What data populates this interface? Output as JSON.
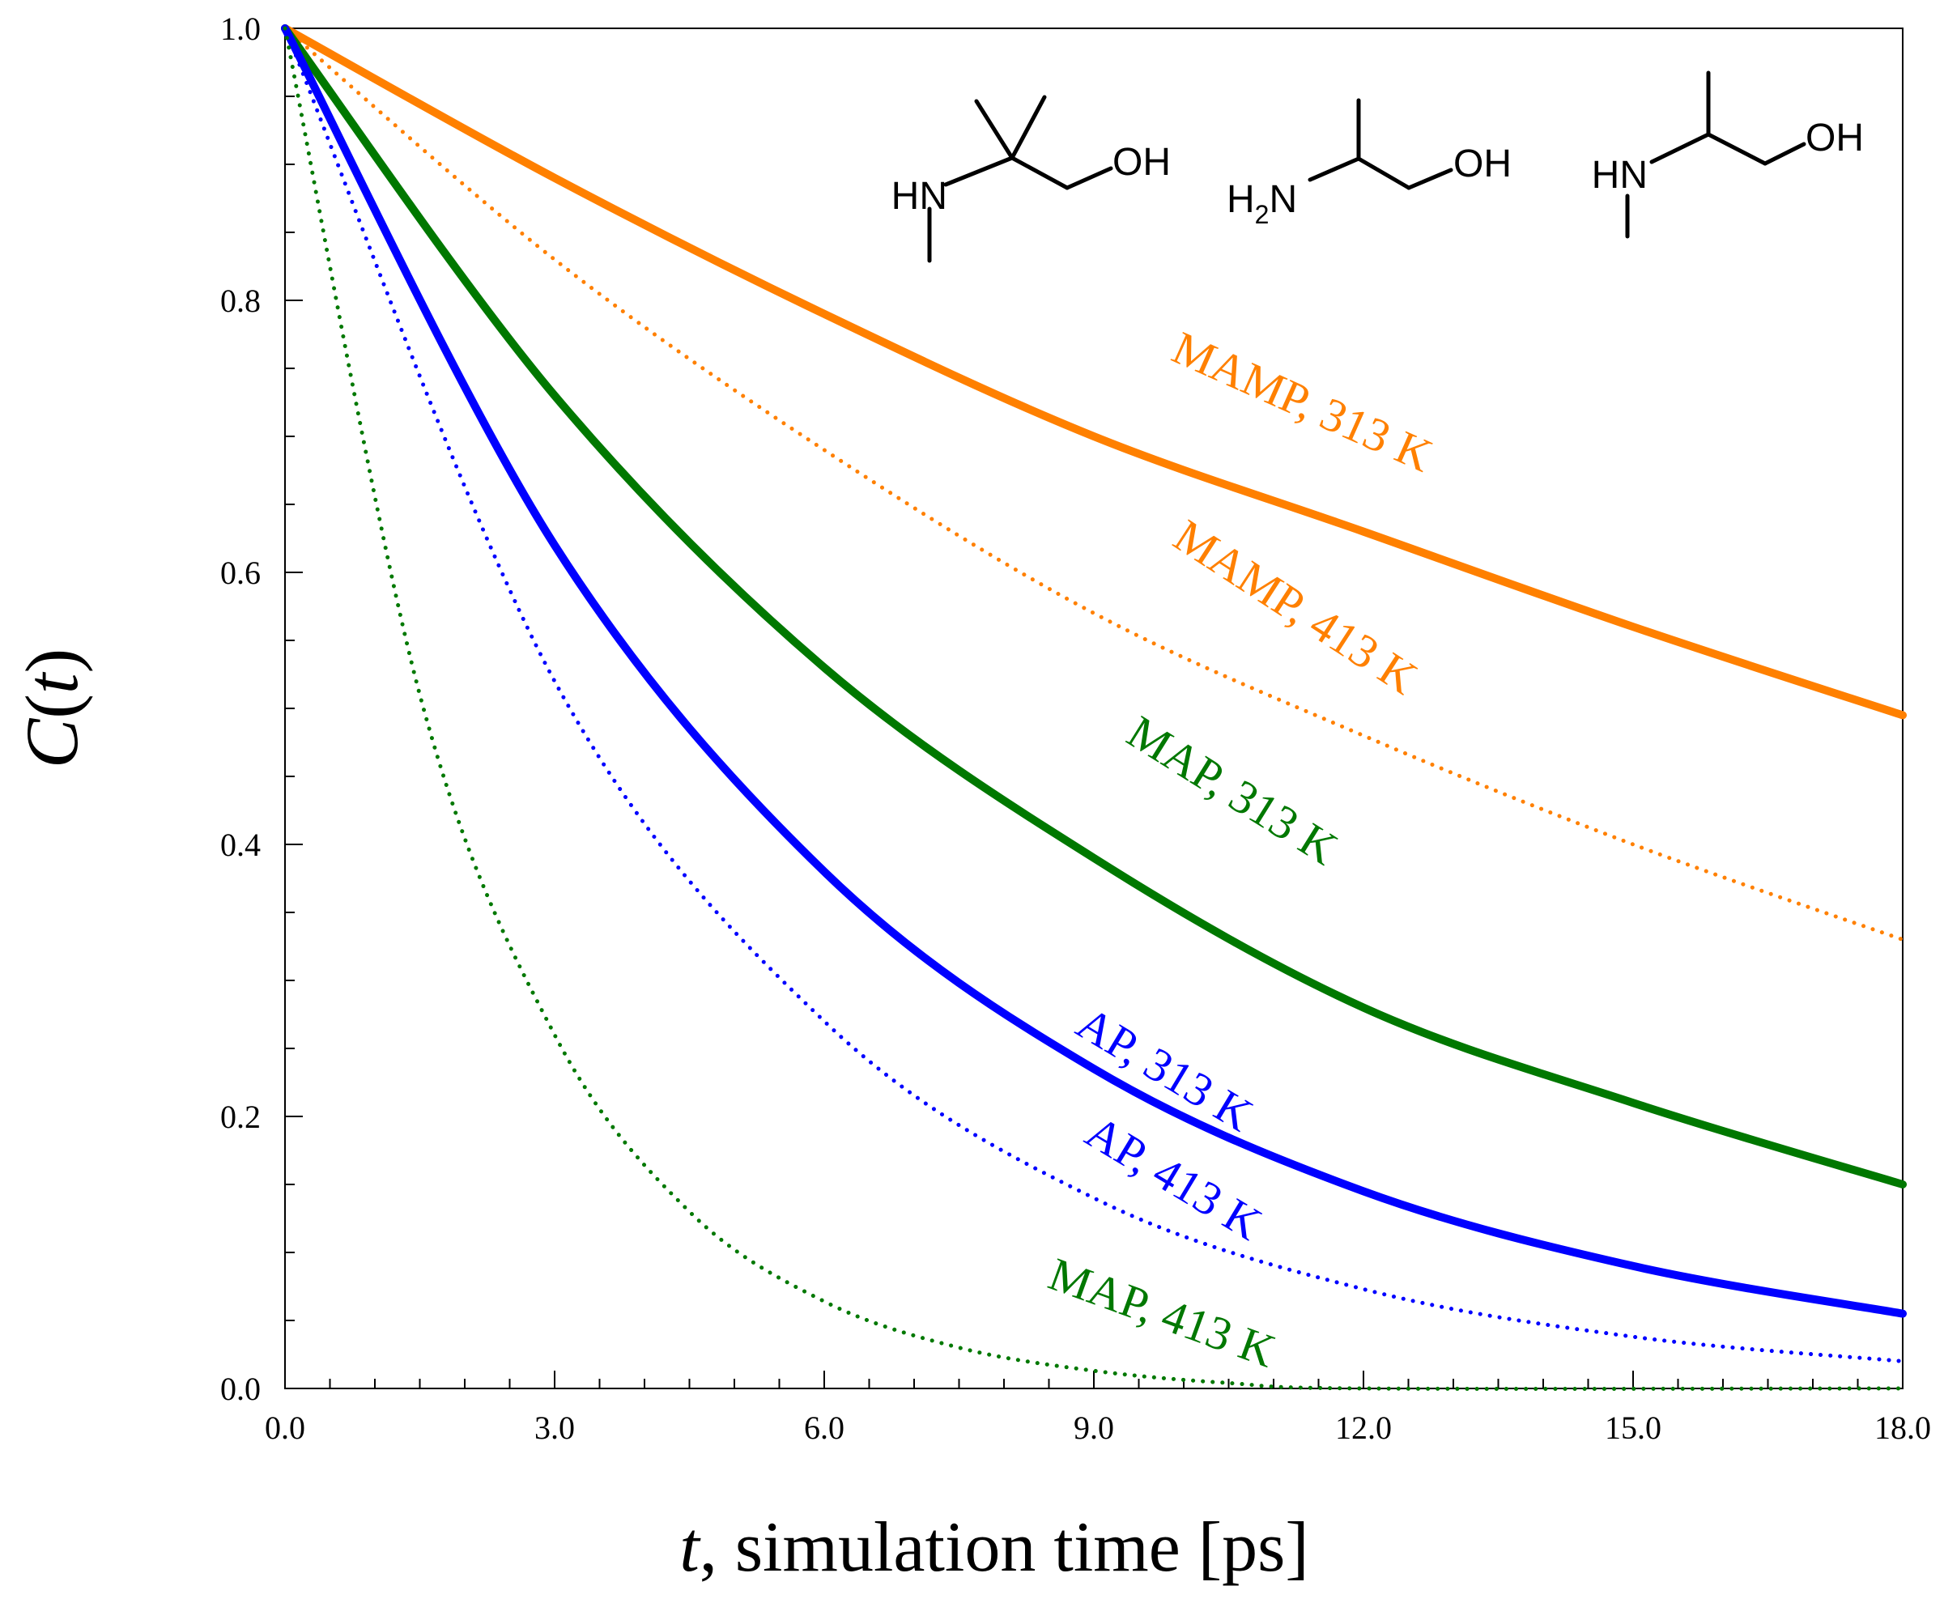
{
  "chart_data": {
    "type": "line",
    "xlabel_var": "t",
    "xlabel_rest": ", simulation time [ps]",
    "ylabel_var_c": "C",
    "ylabel_open": "(",
    "ylabel_var_t": "t",
    "ylabel_close": ")",
    "xlim": [
      0,
      18
    ],
    "ylim": [
      0,
      1
    ],
    "x_ticks": [
      "0.0",
      "3.0",
      "6.0",
      "9.0",
      "12.0",
      "15.0",
      "18.0"
    ],
    "y_ticks": [
      "0.0",
      "0.2",
      "0.4",
      "0.6",
      "0.8",
      "1.0"
    ],
    "grid": false,
    "series": [
      {
        "name": "MAMP, 313 K",
        "color": "#ff8000",
        "style": "solid",
        "x": [
          0,
          3,
          6,
          9,
          12,
          15,
          18
        ],
        "y": [
          1.0,
          0.89,
          0.79,
          0.7,
          0.63,
          0.56,
          0.495
        ]
      },
      {
        "name": "MAMP, 413 K",
        "color": "#ff8000",
        "style": "dotted",
        "x": [
          0,
          3,
          6,
          9,
          12,
          15,
          18
        ],
        "y": [
          1.0,
          0.83,
          0.69,
          0.57,
          0.48,
          0.4,
          0.33
        ]
      },
      {
        "name": "MAP, 313 K",
        "color": "#007800",
        "style": "solid",
        "x": [
          0,
          3,
          6,
          9,
          12,
          15,
          18
        ],
        "y": [
          1.0,
          0.73,
          0.53,
          0.39,
          0.28,
          0.21,
          0.15
        ]
      },
      {
        "name": "AP, 313 K",
        "color": "#0000ff",
        "style": "solid",
        "x": [
          0,
          3,
          6,
          9,
          12,
          15,
          18
        ],
        "y": [
          1.0,
          0.62,
          0.38,
          0.235,
          0.145,
          0.09,
          0.055
        ]
      },
      {
        "name": "AP, 413 K",
        "color": "#0000ff",
        "style": "dotted",
        "x": [
          0,
          3,
          6,
          9,
          12,
          15,
          18
        ],
        "y": [
          1.0,
          0.52,
          0.27,
          0.14,
          0.073,
          0.038,
          0.02
        ]
      },
      {
        "name": "MAP, 413 K",
        "color": "#007800",
        "style": "dotted",
        "x": [
          0,
          1.5,
          3,
          4.5,
          6,
          7.5,
          9,
          10.5,
          12,
          18
        ],
        "y": [
          1.0,
          0.51,
          0.26,
          0.13,
          0.064,
          0.03,
          0.013,
          0.004,
          0.0,
          0.0
        ]
      }
    ],
    "annotations": [
      {
        "text": "MAMP, 313 K",
        "x": 11.25,
        "y": 0.715,
        "angle_deg": 24,
        "color": "#ff8000"
      },
      {
        "text": "MAMP, 413 K",
        "x": 11.15,
        "y": 0.565,
        "angle_deg": 33,
        "color": "#ff8000"
      },
      {
        "text": "MAP, 313 K",
        "x": 10.45,
        "y": 0.43,
        "angle_deg": 32,
        "color": "#007800"
      },
      {
        "text": "AP, 313 K",
        "x": 9.7,
        "y": 0.225,
        "angle_deg": 31,
        "color": "#0000ff"
      },
      {
        "text": "AP, 413 K",
        "x": 9.8,
        "y": 0.145,
        "angle_deg": 31,
        "color": "#0000ff"
      },
      {
        "text": "MAP, 413 K",
        "x": 9.7,
        "y": 0.045,
        "angle_deg": 20,
        "color": "#007800"
      }
    ]
  },
  "molecules": {
    "mamp": {
      "nh": "HN",
      "oh": "OH"
    },
    "ap": {
      "h": "H",
      "two": "2",
      "n": "N",
      "oh": "OH"
    },
    "map": {
      "nh": "HN",
      "oh": "OH"
    }
  }
}
